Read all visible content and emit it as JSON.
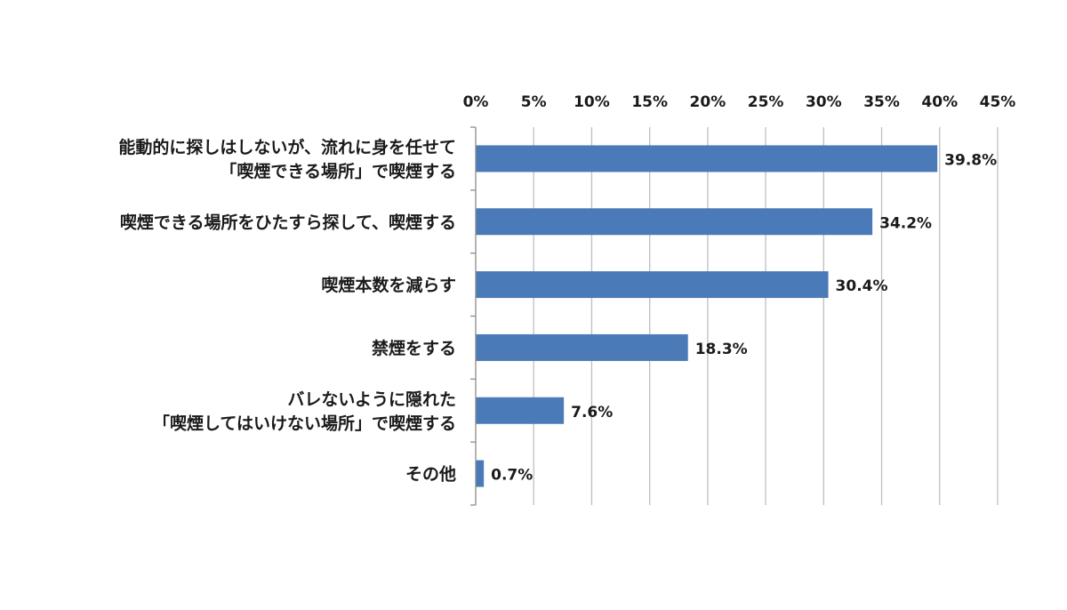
{
  "chart_data": {
    "type": "bar",
    "orientation": "horizontal",
    "title": "",
    "xlabel": "",
    "ylabel": "",
    "xlim": [
      0,
      45
    ],
    "x_axis_position": "top",
    "grid": true,
    "legend": "none",
    "bar_color": "#4a7ab7",
    "ticks": [
      "0%",
      "5%",
      "10%",
      "15%",
      "20%",
      "25%",
      "30%",
      "35%",
      "40%",
      "45%"
    ],
    "categories": [
      [
        "能動的に探しはしないが、流れに身を任せて",
        "「喫煙できる場所」で喫煙する"
      ],
      [
        "喫煙できる場所をひたすら探して、喫煙する"
      ],
      [
        "喫煙本数を減らす"
      ],
      [
        "禁煙をする"
      ],
      [
        "バレないように隠れた",
        "「喫煙してはいけない場所」で喫煙する"
      ],
      [
        "その他"
      ]
    ],
    "values": [
      39.8,
      34.2,
      30.4,
      18.3,
      7.6,
      0.7
    ],
    "value_labels": [
      "39.8%",
      "34.2%",
      "30.4%",
      "18.3%",
      "7.6%",
      "0.7%"
    ]
  }
}
